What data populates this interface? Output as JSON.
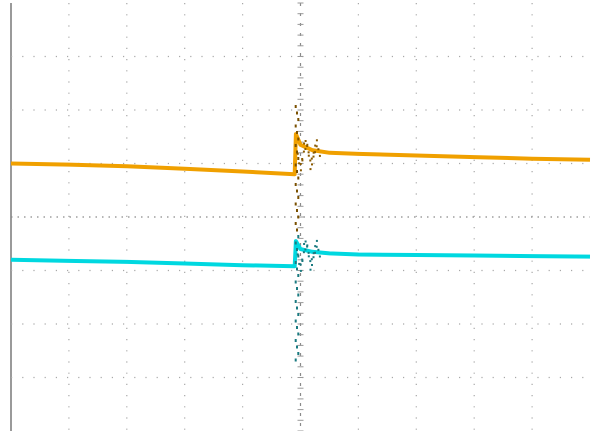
{
  "chart_data": {
    "type": "line",
    "title": "",
    "xlabel": "",
    "ylabel": "",
    "grid": true,
    "grid_divisions": {
      "x": 10,
      "y": 8
    },
    "xlim": [
      0,
      10
    ],
    "ylim": [
      -4,
      4
    ],
    "trigger_x": 4.9,
    "series": [
      {
        "color": "#f0a000",
        "x": [
          0,
          1,
          2,
          3,
          4,
          4.9,
          4.92,
          5.0,
          5.2,
          5.5,
          6,
          7,
          8,
          9,
          10
        ],
        "y": [
          1.0,
          0.98,
          0.95,
          0.9,
          0.85,
          0.8,
          1.55,
          1.35,
          1.25,
          1.2,
          1.18,
          1.15,
          1.12,
          1.09,
          1.07
        ]
      },
      {
        "color": "#00d8e0",
        "x": [
          0,
          1,
          2,
          3,
          4,
          4.9,
          4.92,
          5.0,
          5.2,
          5.5,
          6,
          7,
          8,
          9,
          10
        ],
        "y": [
          -0.8,
          -0.82,
          -0.84,
          -0.87,
          -0.9,
          -0.92,
          -0.45,
          -0.6,
          -0.65,
          -0.68,
          -0.7,
          -0.71,
          -0.72,
          -0.73,
          -0.74
        ]
      }
    ]
  }
}
